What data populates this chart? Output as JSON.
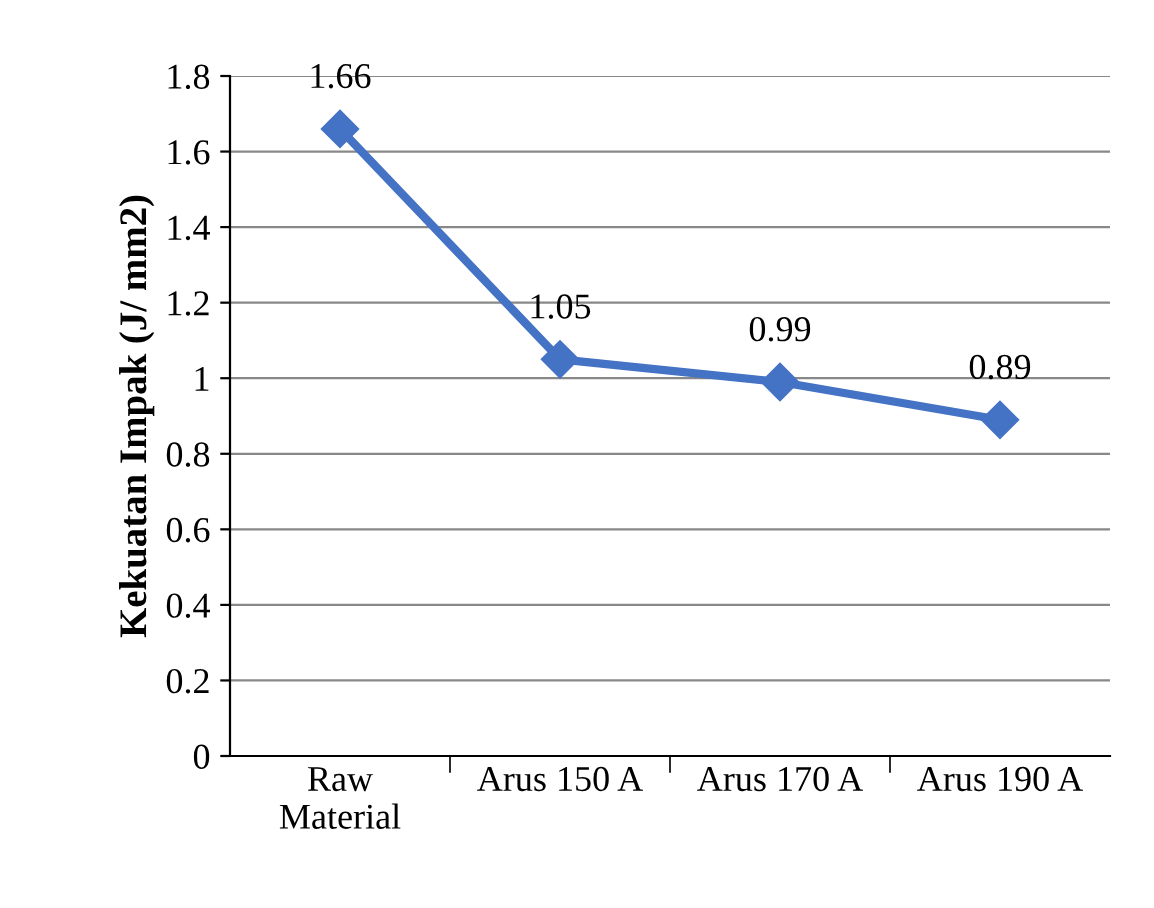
{
  "chart_data": {
    "type": "line",
    "ylabel": "Kekuatan Impak (J/ mm2)",
    "categories": [
      "Raw\nMaterial",
      "Arus 150 A",
      "Arus 170 A",
      "Arus 190 A"
    ],
    "series": [
      {
        "color": "#4472c4",
        "values": [
          1.66,
          1.05,
          0.99,
          0.89
        ]
      }
    ],
    "ylim": [
      0,
      1.8
    ],
    "yticks": [
      0,
      0.2,
      0.4,
      0.6,
      0.8,
      1,
      1.2,
      1.4,
      1.6,
      1.8
    ],
    "grid": "y",
    "marker": "diamond",
    "line_style": "solid",
    "data_labels": true,
    "legend": false
  }
}
